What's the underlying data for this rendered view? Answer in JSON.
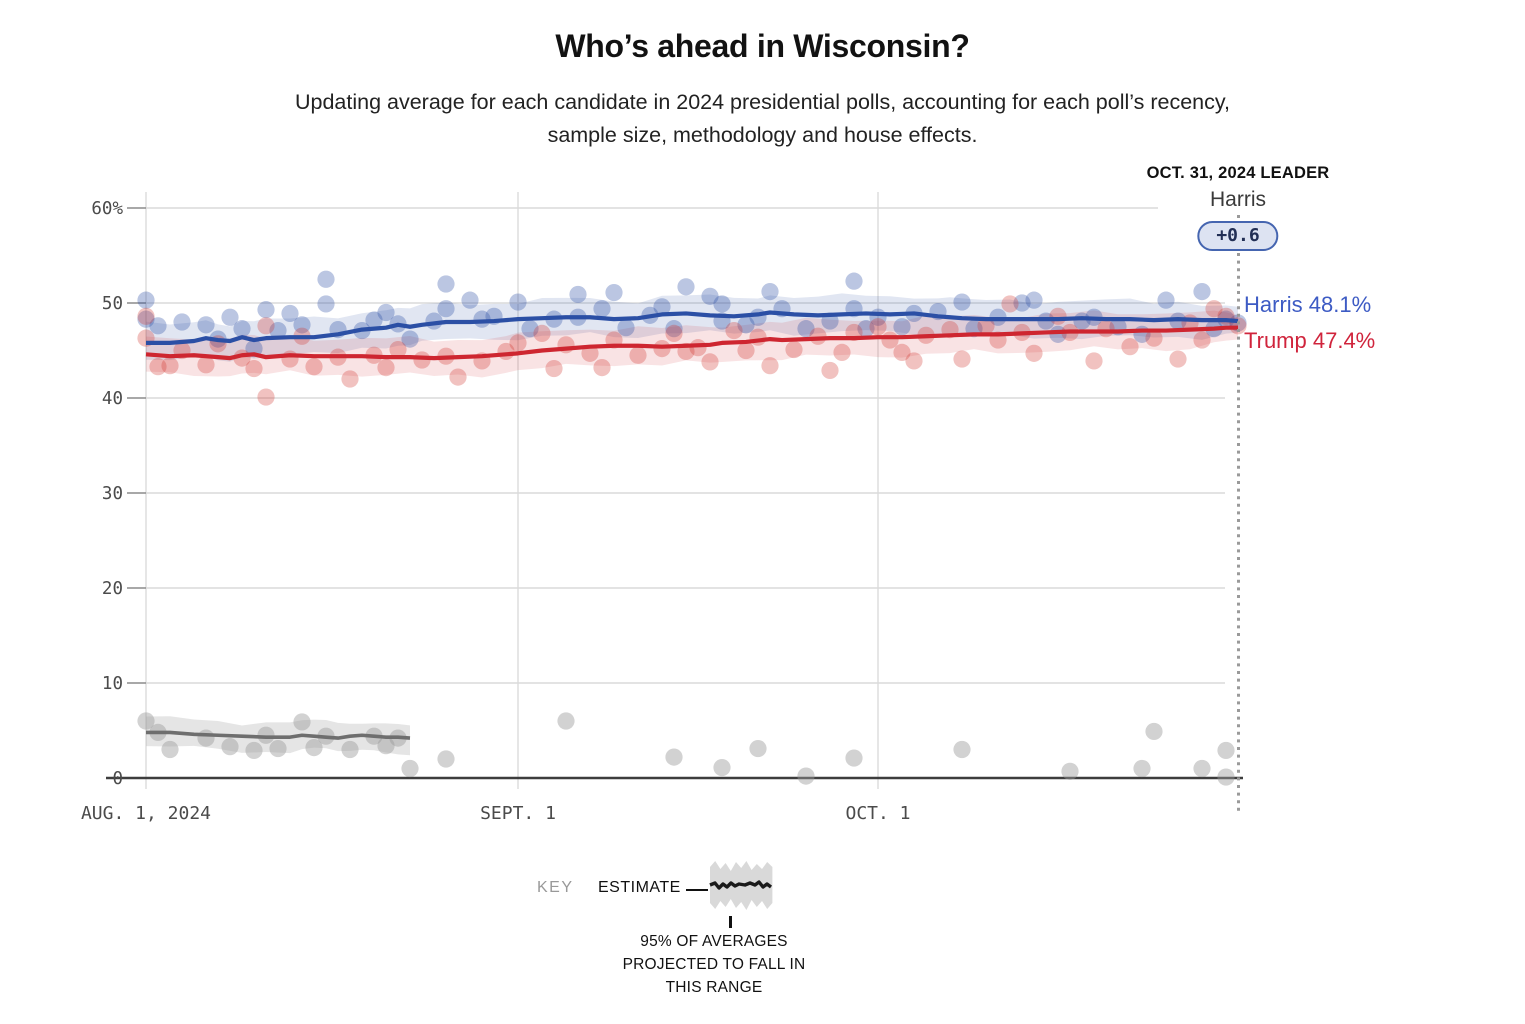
{
  "colors": {
    "harris_line": "#2b4fa5",
    "harris_text": "#3d5bc4",
    "harris_band": "#2b4fa5",
    "trump_line": "#ce2630",
    "trump_text": "#d0243c",
    "trump_band": "#ce2630",
    "other_line": "#6e6e6e",
    "other_band": "#a8a8a8",
    "grid": "#dadada",
    "grid_tick": "#8c8c8c",
    "axis": "#3d3d3d",
    "dotted_line": "#9a9a9a",
    "badge_bg": "#dde3f2",
    "badge_border": "#4565b0"
  },
  "chart_data": {
    "type": "line",
    "title": "Who’s ahead in Wisconsin?",
    "subtitle": "Updating average for each candidate in 2024 presidential polls, accounting for each poll’s recency, sample size, methodology and house effects.",
    "subtitle_lines": [
      "Updating average for each candidate in 2024 presidential polls, accounting for each poll’s recency,",
      "sample size, methodology and house effects."
    ],
    "x_axis": {
      "start_date": "AUG. 1, 2024",
      "end_date": "OCT. 31, 2024",
      "range_days": [
        0,
        91
      ],
      "ticks": [
        {
          "day": 0,
          "label": "AUG. 1, 2024"
        },
        {
          "day": 31,
          "label": "SEPT. 1"
        },
        {
          "day": 61,
          "label": "OCT. 1"
        }
      ],
      "grid": true
    },
    "y_axis": {
      "min": 0,
      "max": 60,
      "unit": "%",
      "ticks": [
        {
          "value": 0,
          "label": "0"
        },
        {
          "value": 10,
          "label": "10"
        },
        {
          "value": 20,
          "label": "20"
        },
        {
          "value": 30,
          "label": "30"
        },
        {
          "value": 40,
          "label": "40"
        },
        {
          "value": 50,
          "label": "50"
        },
        {
          "value": 60,
          "label": "60%"
        }
      ],
      "grid": true
    },
    "annotation": {
      "heading": "OCT. 31, 2024 LEADER",
      "leader_name": "Harris",
      "leader_margin": "+0.6",
      "date_line_day": 91
    },
    "series": [
      {
        "id": "harris",
        "name": "Harris",
        "end_label": "Harris 48.1%",
        "final_value": 48.1,
        "band_halfwidth": 1.9,
        "points": [
          [
            0,
            45.8
          ],
          [
            2,
            45.8
          ],
          [
            4,
            46.0
          ],
          [
            5,
            46.3
          ],
          [
            6,
            46.1
          ],
          [
            7,
            46.0
          ],
          [
            8,
            46.4
          ],
          [
            9,
            46.1
          ],
          [
            10,
            46.3
          ],
          [
            12,
            46.4
          ],
          [
            14,
            46.4
          ],
          [
            16,
            46.7
          ],
          [
            18,
            47.2
          ],
          [
            20,
            47.4
          ],
          [
            21,
            47.7
          ],
          [
            22,
            47.5
          ],
          [
            23,
            47.7
          ],
          [
            25,
            48.0
          ],
          [
            27,
            48.0
          ],
          [
            29,
            48.1
          ],
          [
            31,
            48.3
          ],
          [
            33,
            48.4
          ],
          [
            35,
            48.5
          ],
          [
            37,
            48.5
          ],
          [
            39,
            48.3
          ],
          [
            41,
            48.4
          ],
          [
            43,
            48.8
          ],
          [
            45,
            48.9
          ],
          [
            47,
            48.7
          ],
          [
            49,
            48.6
          ],
          [
            51,
            48.8
          ],
          [
            52,
            49.0
          ],
          [
            54,
            48.8
          ],
          [
            56,
            48.7
          ],
          [
            58,
            48.8
          ],
          [
            60,
            48.9
          ],
          [
            62,
            48.8
          ],
          [
            64,
            48.9
          ],
          [
            66,
            48.6
          ],
          [
            67,
            48.5
          ],
          [
            68,
            48.4
          ],
          [
            70,
            48.3
          ],
          [
            72,
            48.3
          ],
          [
            74,
            48.3
          ],
          [
            76,
            48.3
          ],
          [
            78,
            48.4
          ],
          [
            80,
            48.3
          ],
          [
            82,
            48.3
          ],
          [
            84,
            48.2
          ],
          [
            86,
            48.3
          ],
          [
            88,
            48.2
          ],
          [
            90,
            48.2
          ],
          [
            91,
            48.1
          ]
        ]
      },
      {
        "id": "trump",
        "name": "Trump",
        "end_label": "Trump 47.4%",
        "final_value": 47.4,
        "band_halfwidth": 1.9,
        "points": [
          [
            0,
            44.6
          ],
          [
            2,
            44.4
          ],
          [
            4,
            44.5
          ],
          [
            6,
            44.3
          ],
          [
            7,
            44.2
          ],
          [
            8,
            44.5
          ],
          [
            9,
            44.6
          ],
          [
            10,
            44.3
          ],
          [
            12,
            44.5
          ],
          [
            14,
            44.4
          ],
          [
            16,
            44.4
          ],
          [
            18,
            44.4
          ],
          [
            20,
            44.3
          ],
          [
            22,
            44.3
          ],
          [
            24,
            44.2
          ],
          [
            26,
            44.3
          ],
          [
            28,
            44.4
          ],
          [
            30,
            44.6
          ],
          [
            31,
            44.7
          ],
          [
            33,
            45.0
          ],
          [
            35,
            45.2
          ],
          [
            37,
            45.4
          ],
          [
            39,
            45.5
          ],
          [
            41,
            45.5
          ],
          [
            43,
            45.4
          ],
          [
            45,
            45.5
          ],
          [
            47,
            45.6
          ],
          [
            48,
            45.8
          ],
          [
            50,
            45.9
          ],
          [
            52,
            46.2
          ],
          [
            53,
            46.1
          ],
          [
            55,
            46.2
          ],
          [
            57,
            46.3
          ],
          [
            59,
            46.3
          ],
          [
            61,
            46.4
          ],
          [
            63,
            46.4
          ],
          [
            65,
            46.5
          ],
          [
            67,
            46.6
          ],
          [
            69,
            46.7
          ],
          [
            71,
            46.7
          ],
          [
            73,
            46.8
          ],
          [
            75,
            46.9
          ],
          [
            77,
            47.0
          ],
          [
            79,
            47.0
          ],
          [
            81,
            47.0
          ],
          [
            83,
            47.1
          ],
          [
            85,
            47.1
          ],
          [
            87,
            47.2
          ],
          [
            89,
            47.3
          ],
          [
            90,
            47.4
          ],
          [
            91,
            47.4
          ]
        ]
      },
      {
        "id": "other",
        "name": "Other",
        "end_label": "",
        "final_value": 4.2,
        "band_halfwidth": 1.5,
        "points": [
          [
            0,
            4.8
          ],
          [
            2,
            4.8
          ],
          [
            4,
            4.6
          ],
          [
            6,
            4.5
          ],
          [
            8,
            4.4
          ],
          [
            10,
            4.3
          ],
          [
            12,
            4.3
          ],
          [
            13,
            4.5
          ],
          [
            14,
            4.4
          ],
          [
            15,
            4.3
          ],
          [
            16,
            4.2
          ],
          [
            17,
            4.4
          ],
          [
            18,
            4.5
          ],
          [
            19,
            4.4
          ],
          [
            20,
            4.3
          ],
          [
            21,
            4.3
          ],
          [
            22,
            4.2
          ]
        ]
      }
    ],
    "scatter": {
      "harris": [
        [
          0,
          50.3
        ],
        [
          0,
          48.3
        ],
        [
          1,
          47.6
        ],
        [
          3,
          48.0
        ],
        [
          5,
          47.7
        ],
        [
          6,
          46.2
        ],
        [
          7,
          48.5
        ],
        [
          8,
          47.3
        ],
        [
          9,
          45.2
        ],
        [
          10,
          49.3
        ],
        [
          11,
          47.1
        ],
        [
          12,
          48.9
        ],
        [
          13,
          47.7
        ],
        [
          15,
          52.5
        ],
        [
          15,
          49.9
        ],
        [
          16,
          47.2
        ],
        [
          18,
          47.1
        ],
        [
          19,
          48.2
        ],
        [
          20,
          49.0
        ],
        [
          21,
          47.8
        ],
        [
          22,
          46.2
        ],
        [
          24,
          48.1
        ],
        [
          25,
          52.0
        ],
        [
          25,
          49.4
        ],
        [
          27,
          50.3
        ],
        [
          28,
          48.3
        ],
        [
          29,
          48.6
        ],
        [
          31,
          50.1
        ],
        [
          32,
          47.3
        ],
        [
          34,
          48.3
        ],
        [
          36,
          50.9
        ],
        [
          36,
          48.5
        ],
        [
          38,
          49.4
        ],
        [
          39,
          51.1
        ],
        [
          40,
          47.4
        ],
        [
          42,
          48.7
        ],
        [
          43,
          49.6
        ],
        [
          44,
          47.3
        ],
        [
          45,
          51.7
        ],
        [
          47,
          50.7
        ],
        [
          48,
          49.9
        ],
        [
          48,
          48.1
        ],
        [
          50,
          47.7
        ],
        [
          51,
          48.5
        ],
        [
          52,
          51.2
        ],
        [
          53,
          49.4
        ],
        [
          55,
          47.3
        ],
        [
          57,
          48.1
        ],
        [
          59,
          52.3
        ],
        [
          59,
          49.4
        ],
        [
          60,
          47.3
        ],
        [
          61,
          48.5
        ],
        [
          63,
          47.5
        ],
        [
          64,
          48.9
        ],
        [
          66,
          49.1
        ],
        [
          68,
          50.1
        ],
        [
          69,
          47.3
        ],
        [
          71,
          48.5
        ],
        [
          73,
          50.0
        ],
        [
          74,
          50.3
        ],
        [
          75,
          48.1
        ],
        [
          76,
          46.7
        ],
        [
          78,
          48.1
        ],
        [
          79,
          48.5
        ],
        [
          81,
          47.5
        ],
        [
          83,
          46.7
        ],
        [
          85,
          50.3
        ],
        [
          86,
          48.1
        ],
        [
          88,
          51.2
        ],
        [
          89,
          47.3
        ],
        [
          90,
          48.3
        ],
        [
          91,
          47.9
        ]
      ],
      "trump": [
        [
          0,
          48.6
        ],
        [
          0,
          46.3
        ],
        [
          1,
          43.3
        ],
        [
          2,
          43.4
        ],
        [
          3,
          45.0
        ],
        [
          5,
          43.5
        ],
        [
          6,
          45.7
        ],
        [
          8,
          44.2
        ],
        [
          9,
          43.1
        ],
        [
          10,
          40.1
        ],
        [
          10,
          47.6
        ],
        [
          12,
          44.1
        ],
        [
          13,
          46.5
        ],
        [
          14,
          43.3
        ],
        [
          16,
          44.3
        ],
        [
          17,
          42.0
        ],
        [
          19,
          44.5
        ],
        [
          20,
          43.2
        ],
        [
          21,
          45.1
        ],
        [
          23,
          44.0
        ],
        [
          25,
          44.4
        ],
        [
          26,
          42.2
        ],
        [
          28,
          43.9
        ],
        [
          30,
          44.9
        ],
        [
          31,
          45.8
        ],
        [
          33,
          46.8
        ],
        [
          34,
          43.1
        ],
        [
          35,
          45.6
        ],
        [
          37,
          44.7
        ],
        [
          38,
          43.2
        ],
        [
          39,
          46.1
        ],
        [
          41,
          44.5
        ],
        [
          43,
          45.2
        ],
        [
          44,
          46.8
        ],
        [
          45,
          44.9
        ],
        [
          46,
          45.3
        ],
        [
          47,
          43.8
        ],
        [
          49,
          47.1
        ],
        [
          50,
          45.0
        ],
        [
          51,
          46.4
        ],
        [
          52,
          43.4
        ],
        [
          54,
          45.1
        ],
        [
          56,
          46.5
        ],
        [
          57,
          42.9
        ],
        [
          58,
          44.8
        ],
        [
          59,
          46.9
        ],
        [
          61,
          47.5
        ],
        [
          62,
          46.1
        ],
        [
          63,
          44.8
        ],
        [
          64,
          43.9
        ],
        [
          65,
          46.6
        ],
        [
          67,
          47.2
        ],
        [
          68,
          44.1
        ],
        [
          70,
          47.6
        ],
        [
          71,
          46.1
        ],
        [
          72,
          49.9
        ],
        [
          73,
          46.9
        ],
        [
          74,
          44.7
        ],
        [
          76,
          48.6
        ],
        [
          77,
          46.9
        ],
        [
          79,
          43.9
        ],
        [
          80,
          47.3
        ],
        [
          82,
          45.4
        ],
        [
          84,
          46.3
        ],
        [
          86,
          44.1
        ],
        [
          87,
          47.9
        ],
        [
          88,
          46.1
        ],
        [
          89,
          49.4
        ],
        [
          90,
          48.6
        ],
        [
          91,
          47.6
        ]
      ],
      "other": [
        [
          0,
          6.0
        ],
        [
          1,
          4.8
        ],
        [
          2,
          3.0
        ],
        [
          5,
          4.2
        ],
        [
          7,
          3.3
        ],
        [
          9,
          2.9
        ],
        [
          10,
          4.5
        ],
        [
          11,
          3.1
        ],
        [
          13,
          5.9
        ],
        [
          14,
          3.2
        ],
        [
          15,
          4.4
        ],
        [
          17,
          3.0
        ],
        [
          19,
          4.4
        ],
        [
          20,
          3.4
        ],
        [
          21,
          4.2
        ],
        [
          22,
          1.0
        ],
        [
          25,
          2.0
        ],
        [
          35,
          6.0
        ],
        [
          44,
          2.2
        ],
        [
          48,
          1.1
        ],
        [
          51,
          3.1
        ],
        [
          55,
          0.2
        ],
        [
          59,
          2.1
        ],
        [
          68,
          3.0
        ],
        [
          77,
          0.7
        ],
        [
          83,
          1.0
        ],
        [
          84,
          4.9
        ],
        [
          88,
          1.0
        ],
        [
          90,
          2.9
        ],
        [
          90,
          0.1
        ]
      ]
    },
    "key": {
      "key_label": "KEY",
      "estimate_label": "ESTIMATE",
      "note_lines": [
        "95% OF AVERAGES",
        "PROJECTED TO FALL IN",
        "THIS RANGE"
      ]
    },
    "legend_position": "below",
    "grid": true
  }
}
